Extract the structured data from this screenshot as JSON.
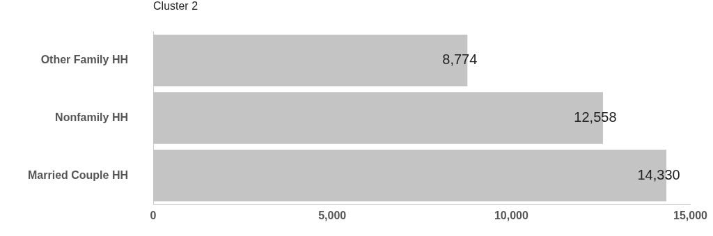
{
  "chart_data": {
    "type": "bar",
    "title": "Cluster 2",
    "orientation": "horizontal",
    "categories": [
      "Other Family HH",
      "Nonfamily HH",
      "Married Couple HH"
    ],
    "values": [
      8774,
      12558,
      14330
    ],
    "value_labels": [
      "8,774",
      "12,558",
      "14,330"
    ],
    "data_labels": true,
    "color": "#c4c4c4",
    "xlim": [
      0,
      15000
    ],
    "xticks": [
      0,
      {
        "value": 5000,
        "label": "5,000"
      },
      {
        "value": 10000,
        "label": "10,000"
      },
      {
        "value": 15000,
        "label": "15,000"
      }
    ],
    "grid": false
  }
}
